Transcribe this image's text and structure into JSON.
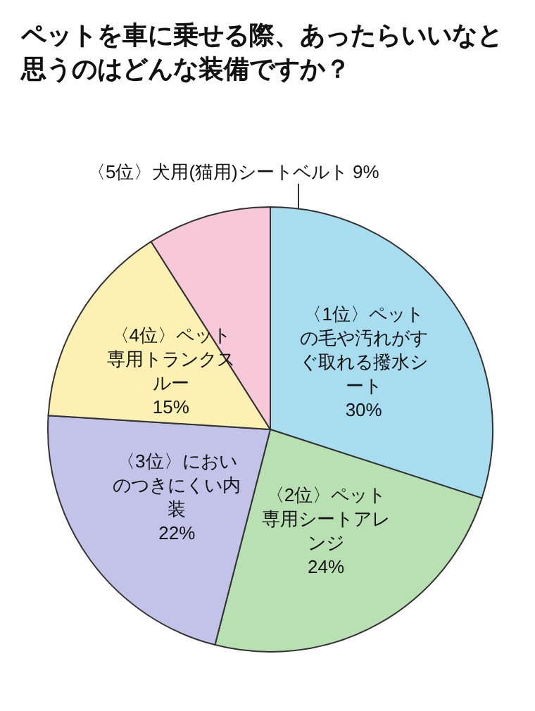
{
  "chart_data": {
    "type": "pie",
    "title": "ペットを車に乗せる際、あったらいいなと思うのはどんな装備ですか？",
    "categories": [
      "〈1位〉ペットの毛や汚れがすぐ取れる撥水シート",
      "〈2位〉ペット専用シートアレンジ",
      "〈3位〉においのつきにくい内装",
      "〈4位〉ペット専用トランクスルー",
      "〈5位〉犬用(猫用)シートベルト"
    ],
    "values": [
      30,
      24,
      22,
      15,
      9
    ],
    "colors": [
      "#a8dcef",
      "#b9e0b3",
      "#c3c3ea",
      "#fdf0b3",
      "#f6c8d8"
    ],
    "value_labels": [
      "30%",
      "24%",
      "22%",
      "15%",
      "9%"
    ],
    "legend": false
  }
}
